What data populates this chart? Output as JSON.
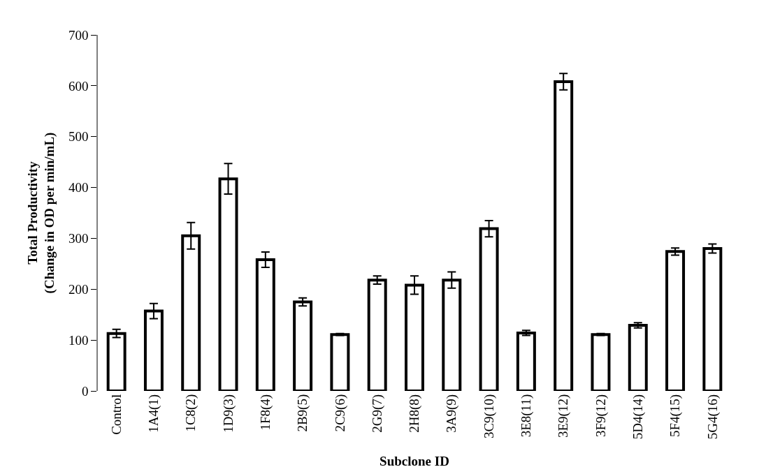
{
  "chart_data": {
    "type": "bar",
    "xlabel": "Subclone ID",
    "ylabel": "Total Productivity\n(Change in OD per min/mL)",
    "categories": [
      "Control",
      "1A4(1)",
      "1C8(2)",
      "1D9(3)",
      "1F8(4)",
      "2B9(5)",
      "2C9(6)",
      "2G9(7)",
      "2H8(8)",
      "3A9(9)",
      "3C9(10)",
      "3E8(11)",
      "3E9(12)",
      "3F9(12)",
      "5D4(14)",
      "5F4(15)",
      "5G4(16)"
    ],
    "values": [
      113,
      157,
      305,
      417,
      258,
      175,
      111,
      218,
      208,
      218,
      319,
      114,
      608,
      111,
      129,
      274,
      280
    ],
    "errors": [
      8,
      15,
      26,
      30,
      15,
      8,
      2,
      8,
      18,
      16,
      16,
      5,
      16,
      2,
      5,
      7,
      9
    ],
    "color": "#ffffff",
    "ylim": [
      0,
      700
    ],
    "yticks": [
      0,
      100,
      200,
      300,
      400,
      500,
      600,
      700
    ],
    "legend": false
  }
}
